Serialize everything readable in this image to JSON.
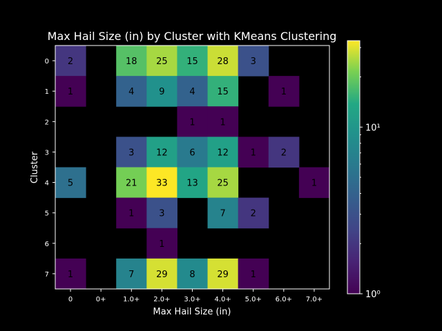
{
  "chart_data": {
    "type": "heatmap",
    "title": "Max Hail Size (in) by Cluster with KMeans Clustering",
    "xlabel": "Max Hail Size (in)",
    "ylabel": "Cluster",
    "x_categories": [
      "0",
      "0+",
      "1.0+",
      "2.0+",
      "3.0+",
      "4.0+",
      "5.0+",
      "6.0+",
      "7.0+"
    ],
    "y_categories": [
      "0",
      "1",
      "2",
      "3",
      "4",
      "5",
      "6",
      "7"
    ],
    "values": [
      [
        2,
        null,
        18,
        25,
        15,
        28,
        3,
        null,
        null
      ],
      [
        1,
        null,
        4,
        9,
        4,
        15,
        null,
        1,
        null
      ],
      [
        null,
        null,
        null,
        null,
        1,
        1,
        null,
        null,
        null
      ],
      [
        null,
        null,
        3,
        12,
        6,
        12,
        1,
        2,
        null
      ],
      [
        5,
        null,
        21,
        33,
        13,
        25,
        null,
        null,
        1
      ],
      [
        null,
        null,
        1,
        3,
        null,
        7,
        2,
        null,
        null
      ],
      [
        null,
        null,
        null,
        1,
        null,
        null,
        null,
        null,
        null
      ],
      [
        1,
        null,
        7,
        29,
        8,
        29,
        1,
        null,
        null
      ]
    ],
    "colorbar": {
      "scale": "log",
      "min": 1,
      "max": 33,
      "colormap": "viridis",
      "tick_labels": [
        "10⁰",
        "10¹"
      ],
      "tick_values": [
        1,
        10
      ]
    },
    "background": "#000000"
  }
}
